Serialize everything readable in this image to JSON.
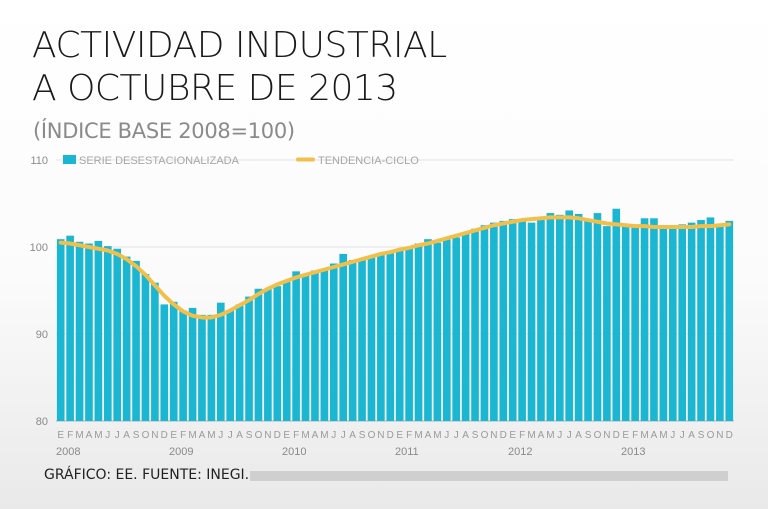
{
  "title_line1": "ACTIVIDAD INDUSTRIAL",
  "title_line2": "A OCTUBRE DE 2013",
  "subtitle": "(ÍNDICE BASE 2008=100)",
  "footer": "GRÁFICO: EE. FUENTE: INEGI.",
  "colors": {
    "bar": "#1bb6d2",
    "trend": "#f2c04a",
    "grid": "#e2e2e2"
  },
  "chart_data": {
    "type": "bar",
    "ylim": [
      80,
      110
    ],
    "yticks": [
      80,
      90,
      100,
      110
    ],
    "grid": true,
    "legend_position": "top-left",
    "legend": [
      {
        "name": "SERIE DESESTACIONALIZADA",
        "kind": "bar"
      },
      {
        "name": "TENDENCIA-CICLO",
        "kind": "line"
      }
    ],
    "month_labels": [
      "E",
      "F",
      "M",
      "A",
      "M",
      "J",
      "J",
      "A",
      "S",
      "O",
      "N",
      "D"
    ],
    "years": [
      "2008",
      "2009",
      "2010",
      "2011",
      "2012",
      "2013"
    ],
    "series": [
      {
        "name": "SERIE DESESTACIONALIZADA",
        "values": [
          100.9,
          101.3,
          100.6,
          100.4,
          100.7,
          100.1,
          99.8,
          98.9,
          98.4,
          96.9,
          95.9,
          93.4,
          93.7,
          92.7,
          93.0,
          92.2,
          92.2,
          93.6,
          92.7,
          93.4,
          94.3,
          95.2,
          95.2,
          95.5,
          96.0,
          97.2,
          96.9,
          97.3,
          97.4,
          98.1,
          99.2,
          98.5,
          98.6,
          98.8,
          99.3,
          99.4,
          99.6,
          99.9,
          100.4,
          100.9,
          100.5,
          100.9,
          101.1,
          101.5,
          102.1,
          102.5,
          102.8,
          103.0,
          103.2,
          103.1,
          102.8,
          103.2,
          103.9,
          103.7,
          104.2,
          103.8,
          103.1,
          103.9,
          102.4,
          104.4,
          102.6,
          102.6,
          103.3,
          103.3,
          102.3,
          102.3,
          102.6,
          102.8,
          103.1,
          103.4,
          102.5,
          103.0
        ]
      },
      {
        "name": "TENDENCIA-CICLO",
        "values": [
          100.5,
          100.4,
          100.2,
          100.0,
          99.8,
          99.6,
          99.2,
          98.6,
          97.8,
          96.8,
          95.6,
          94.4,
          93.4,
          92.6,
          92.1,
          91.9,
          91.9,
          92.2,
          92.7,
          93.3,
          93.9,
          94.6,
          95.2,
          95.7,
          96.1,
          96.5,
          96.8,
          97.1,
          97.4,
          97.7,
          98.0,
          98.3,
          98.6,
          98.9,
          99.2,
          99.4,
          99.7,
          99.9,
          100.2,
          100.4,
          100.7,
          101.0,
          101.3,
          101.6,
          101.9,
          102.2,
          102.5,
          102.7,
          102.9,
          103.1,
          103.2,
          103.3,
          103.4,
          103.4,
          103.4,
          103.3,
          103.1,
          102.9,
          102.7,
          102.6,
          102.5,
          102.4,
          102.4,
          102.3,
          102.3,
          102.3,
          102.3,
          102.3,
          102.4,
          102.4,
          102.5,
          102.6
        ]
      }
    ]
  }
}
